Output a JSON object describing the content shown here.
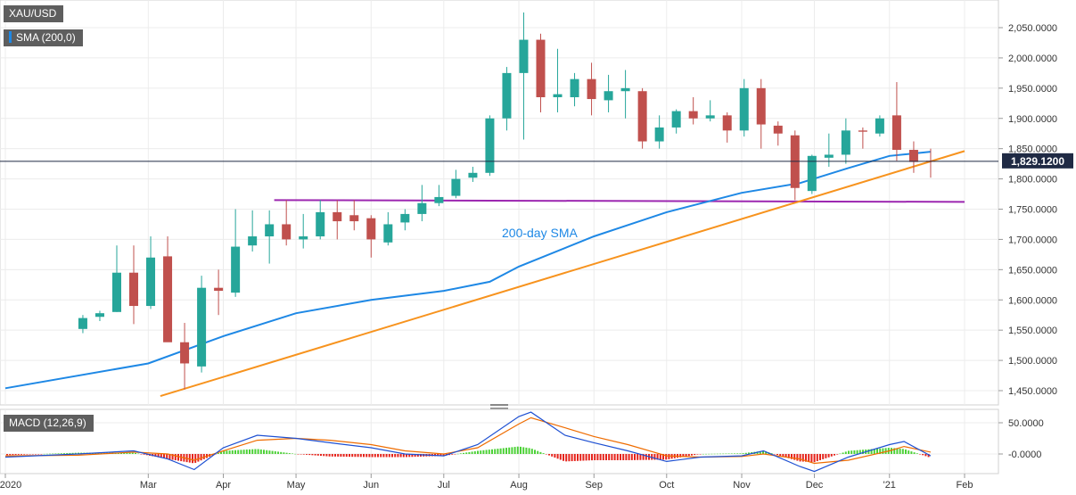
{
  "symbol_label": "XAU/USD",
  "sma_label": "SMA (200,0)",
  "macd_label": "MACD (12,26,9)",
  "current_price_label": "1,829.1200",
  "annotation_sma": "200-day SMA",
  "colors": {
    "up_candle": "#26a69a",
    "down_candle": "#c0504d",
    "sma": "#1e88e5",
    "trendline": "#f7931e",
    "support": "#9c27b0",
    "macd_line": "#1e50d2",
    "signal_line": "#ef6c00",
    "hist_pos": "#4cd137",
    "hist_neg": "#e5231b",
    "price_tag": "#1f2a44"
  },
  "chart_data": [
    {
      "type": "candlestick",
      "title": "XAU/USD",
      "x_tick_labels": [
        "2020",
        "Mar",
        "Apr",
        "May",
        "Jun",
        "Jul",
        "Aug",
        "Sep",
        "Oct",
        "Nov",
        "Dec",
        "'21",
        "Feb"
      ],
      "y_tick_labels": [
        "2,050.0000",
        "2,000.0000",
        "1,950.0000",
        "1,900.0000",
        "1,850.0000",
        "1,800.0000",
        "1,750.0000",
        "1,700.0000",
        "1,650.0000",
        "1,600.0000",
        "1,550.0000",
        "1,500.0000",
        "1,450.0000"
      ],
      "ylim": [
        1420,
        2085
      ],
      "grid": true,
      "current_price": 1829.12,
      "candles": {
        "dates": [
          "2020-02-03",
          "2020-02-10",
          "2020-02-17",
          "2020-02-24",
          "2020-03-02",
          "2020-03-09",
          "2020-03-16",
          "2020-03-23",
          "2020-03-30",
          "2020-04-06",
          "2020-04-13",
          "2020-04-20",
          "2020-04-27",
          "2020-05-04",
          "2020-05-11",
          "2020-05-18",
          "2020-05-25",
          "2020-06-01",
          "2020-06-08",
          "2020-06-15",
          "2020-06-22",
          "2020-06-29",
          "2020-07-06",
          "2020-07-13",
          "2020-07-20",
          "2020-07-27",
          "2020-08-03",
          "2020-08-10",
          "2020-08-17",
          "2020-08-24",
          "2020-08-31",
          "2020-09-07",
          "2020-09-14",
          "2020-09-21",
          "2020-09-28",
          "2020-10-05",
          "2020-10-12",
          "2020-10-19",
          "2020-10-26",
          "2020-11-02",
          "2020-11-09",
          "2020-11-16",
          "2020-11-23",
          "2020-11-30",
          "2020-12-07",
          "2020-12-14",
          "2020-12-21",
          "2020-12-28",
          "2021-01-04",
          "2021-01-11",
          "2021-01-18"
        ],
        "open": [
          1552,
          1572,
          1580,
          1645,
          1590,
          1672,
          1530,
          1490,
          1620,
          1612,
          1690,
          1705,
          1725,
          1700,
          1705,
          1745,
          1740,
          1735,
          1695,
          1728,
          1742,
          1760,
          1772,
          1802,
          1810,
          1900,
          1975,
          2030,
          1935,
          1935,
          1965,
          1930,
          1945,
          1945,
          1862,
          1885,
          1912,
          1900,
          1905,
          1880,
          1950,
          1888,
          1872,
          1780,
          1835,
          1840,
          1880,
          1875,
          1905,
          1848,
          1830
        ],
        "high": [
          1575,
          1582,
          1690,
          1690,
          1705,
          1705,
          1562,
          1640,
          1650,
          1750,
          1748,
          1748,
          1765,
          1742,
          1765,
          1765,
          1765,
          1740,
          1745,
          1750,
          1790,
          1790,
          1815,
          1820,
          1905,
          1985,
          2075,
          2040,
          2015,
          1975,
          1992,
          1972,
          1980,
          1950,
          1905,
          1915,
          1935,
          1930,
          1910,
          1965,
          1965,
          1895,
          1880,
          1840,
          1875,
          1900,
          1885,
          1905,
          1960,
          1862,
          1850
        ],
        "high_note": "approximate",
        "low": [
          1545,
          1565,
          1580,
          1560,
          1585,
          1535,
          1452,
          1480,
          1575,
          1605,
          1680,
          1660,
          1690,
          1685,
          1700,
          1700,
          1715,
          1670,
          1690,
          1715,
          1730,
          1755,
          1768,
          1795,
          1805,
          1880,
          1865,
          1910,
          1910,
          1920,
          1905,
          1910,
          1900,
          1850,
          1850,
          1875,
          1890,
          1895,
          1860,
          1870,
          1850,
          1855,
          1765,
          1775,
          1820,
          1825,
          1850,
          1870,
          1830,
          1810,
          1802
        ],
        "close": [
          1570,
          1578,
          1645,
          1590,
          1670,
          1530,
          1495,
          1620,
          1615,
          1688,
          1705,
          1725,
          1700,
          1705,
          1745,
          1730,
          1730,
          1700,
          1725,
          1742,
          1760,
          1770,
          1800,
          1810,
          1900,
          1975,
          2030,
          1935,
          1940,
          1965,
          1932,
          1945,
          1950,
          1862,
          1885,
          1912,
          1900,
          1905,
          1880,
          1950,
          1890,
          1875,
          1785,
          1838,
          1840,
          1880,
          1878,
          1900,
          1848,
          1828,
          1829
        ]
      },
      "sma_200": {
        "dates": [
          "2020-01-02",
          "2020-03-01",
          "2020-04-01",
          "2020-05-01",
          "2020-06-01",
          "2020-07-01",
          "2020-07-20",
          "2020-08-01",
          "2020-09-01",
          "2020-10-01",
          "2020-11-01",
          "2020-11-25",
          "2020-12-15",
          "2021-01-01",
          "2021-01-18"
        ],
        "values": [
          1454,
          1495,
          1540,
          1578,
          1600,
          1615,
          1630,
          1655,
          1705,
          1745,
          1777,
          1793,
          1818,
          1838,
          1845
        ]
      },
      "trendline": {
        "from": [
          "2020-03-06",
          1441
        ],
        "to": [
          "2021-02-01",
          1846
        ]
      },
      "support_line": {
        "from": [
          "2020-04-22",
          1765
        ],
        "to": [
          "2021-02-01",
          1762
        ]
      }
    },
    {
      "type": "macd",
      "title": "MACD (12,26,9)",
      "y_tick_labels": [
        "50.0000",
        "-0.0000"
      ],
      "ylim": [
        -30,
        85
      ],
      "dates": [
        "2020-01-02",
        "2020-02-01",
        "2020-02-24",
        "2020-03-09",
        "2020-03-20",
        "2020-04-01",
        "2020-04-15",
        "2020-05-01",
        "2020-05-15",
        "2020-06-01",
        "2020-06-15",
        "2020-07-01",
        "2020-07-15",
        "2020-08-01",
        "2020-08-06",
        "2020-08-20",
        "2020-09-01",
        "2020-09-15",
        "2020-10-01",
        "2020-10-15",
        "2020-11-01",
        "2020-11-10",
        "2020-11-25",
        "2020-12-01",
        "2020-12-15",
        "2021-01-01",
        "2021-01-07",
        "2021-01-18"
      ],
      "macd": [
        -5,
        0,
        5,
        -8,
        -25,
        10,
        30,
        25,
        18,
        10,
        0,
        -3,
        15,
        60,
        67,
        30,
        18,
        5,
        -12,
        -5,
        -3,
        5,
        -20,
        -28,
        -5,
        15,
        20,
        -3
      ],
      "signal": [
        -3,
        -2,
        3,
        0,
        -10,
        5,
        22,
        25,
        22,
        15,
        5,
        0,
        10,
        48,
        58,
        42,
        28,
        15,
        -3,
        -5,
        -4,
        0,
        -8,
        -15,
        -10,
        5,
        12,
        3
      ],
      "histogram": [
        -2,
        2,
        2,
        -8,
        -15,
        5,
        8,
        0,
        -4,
        -5,
        -5,
        -3,
        5,
        12,
        9,
        -12,
        -10,
        -10,
        -9,
        0,
        1,
        5,
        -12,
        -13,
        5,
        10,
        8,
        -6
      ]
    }
  ]
}
